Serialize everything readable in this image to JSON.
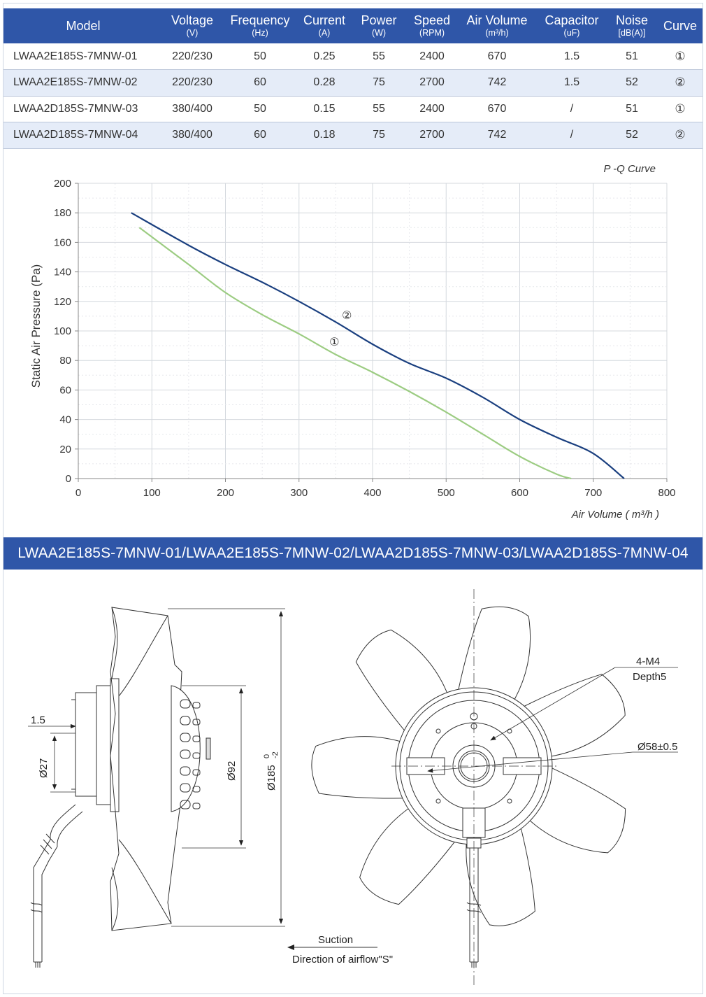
{
  "table": {
    "headers": [
      {
        "label": "Model",
        "unit": ""
      },
      {
        "label": "Voltage",
        "unit": "(V)"
      },
      {
        "label": "Frequency",
        "unit": "(Hz)"
      },
      {
        "label": "Current",
        "unit": "(A)"
      },
      {
        "label": "Power",
        "unit": "(W)"
      },
      {
        "label": "Speed",
        "unit": "(RPM)"
      },
      {
        "label": "Air Volume",
        "unit": "(m³/h)"
      },
      {
        "label": "Capacitor",
        "unit": "(uF)"
      },
      {
        "label": "Noise",
        "unit": "[dB(A)]"
      },
      {
        "label": "Curve",
        "unit": ""
      }
    ],
    "rows": [
      [
        "LWAA2E185S-7MNW-01",
        "220/230",
        "50",
        "0.25",
        "55",
        "2400",
        "670",
        "1.5",
        "51",
        "①"
      ],
      [
        "LWAA2E185S-7MNW-02",
        "220/230",
        "60",
        "0.28",
        "75",
        "2700",
        "742",
        "1.5",
        "52",
        "②"
      ],
      [
        "LWAA2D185S-7MNW-03",
        "380/400",
        "50",
        "0.15",
        "55",
        "2400",
        "670",
        "/",
        "51",
        "①"
      ],
      [
        "LWAA2D185S-7MNW-04",
        "380/400",
        "60",
        "0.18",
        "75",
        "2700",
        "742",
        "/",
        "52",
        "②"
      ]
    ]
  },
  "chart_data": {
    "type": "line",
    "title": "P -Q Curve",
    "xlabel": "Air Volume ( m³/h )",
    "ylabel": "Static Air Pressure  (Pa)",
    "xlim": [
      0,
      800
    ],
    "ylim": [
      0,
      200
    ],
    "x_ticks": [
      "0",
      "100",
      "200",
      "300",
      "400",
      "500",
      "600",
      "700",
      "800"
    ],
    "y_ticks": [
      "0",
      "20",
      "40",
      "60",
      "80",
      "100",
      "120",
      "140",
      "160",
      "180",
      "200"
    ],
    "grid": true,
    "series": [
      {
        "name": "①",
        "color": "#9ccc82",
        "points": [
          [
            83,
            170
          ],
          [
            150,
            145
          ],
          [
            200,
            126
          ],
          [
            250,
            111
          ],
          [
            300,
            98
          ],
          [
            350,
            84
          ],
          [
            400,
            72
          ],
          [
            450,
            59
          ],
          [
            500,
            45
          ],
          [
            550,
            30
          ],
          [
            600,
            15
          ],
          [
            650,
            3
          ],
          [
            670,
            0
          ]
        ]
      },
      {
        "name": "②",
        "color": "#1a3f7f",
        "points": [
          [
            72,
            180
          ],
          [
            150,
            158
          ],
          [
            200,
            145
          ],
          [
            250,
            133
          ],
          [
            300,
            120
          ],
          [
            350,
            106
          ],
          [
            400,
            91
          ],
          [
            450,
            78
          ],
          [
            500,
            68
          ],
          [
            550,
            55
          ],
          [
            600,
            40
          ],
          [
            650,
            28
          ],
          [
            700,
            17
          ],
          [
            742,
            0
          ]
        ]
      }
    ],
    "annotations": [
      {
        "text": "②",
        "x": 365,
        "y": 108
      },
      {
        "text": "①",
        "x": 348,
        "y": 90
      }
    ]
  },
  "banner": {
    "text": "LWAA2E185S-7MNW-01/LWAA2E185S-7MNW-02/LWAA2D185S-7MNW-03/LWAA2D185S-7MNW-04"
  },
  "drawing": {
    "side": {
      "dim_1_5": "1.5",
      "dim_27": "Ø27",
      "dim_92": "Ø92",
      "dim_185": "Ø185",
      "dim_185_tol_upper": "0",
      "dim_185_tol_lower": "-2",
      "suction": "Suction",
      "airflow": "Direction of airflow\"S\""
    },
    "front": {
      "holes": "4-M4",
      "depth": "Depth5",
      "dim_58": "Ø58±0.5"
    }
  }
}
